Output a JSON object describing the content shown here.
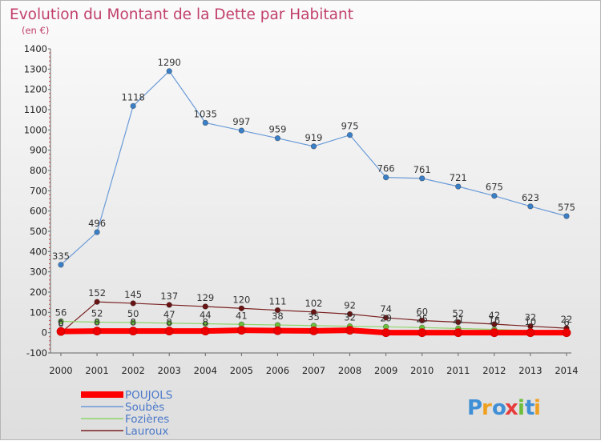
{
  "chart_data": {
    "type": "line",
    "title": "Evolution du Montant de la Dette par Habitant",
    "subtitle": "(en €)",
    "xlabel": "",
    "ylabel": "",
    "ylim": [
      -100,
      1400
    ],
    "yticks": [
      -100,
      0,
      100,
      200,
      300,
      400,
      500,
      600,
      700,
      800,
      900,
      1000,
      1100,
      1200,
      1300,
      1400
    ],
    "categories": [
      "2000",
      "2001",
      "2002",
      "2003",
      "2004",
      "2005",
      "2006",
      "2007",
      "2008",
      "2009",
      "2010",
      "2011",
      "2012",
      "2013",
      "2014"
    ],
    "grid": false,
    "legend_position": "bottom-left",
    "series": [
      {
        "name": "Soubès",
        "color": "#6a9bd8",
        "marker_color": "#3a80c8",
        "line_width": 1.2,
        "values": [
          335,
          496,
          1118,
          1290,
          1035,
          997,
          959,
          919,
          975,
          766,
          761,
          721,
          675,
          623,
          575
        ],
        "labels": [
          "335",
          "496",
          "1118",
          "1290",
          "1035",
          "997",
          "959",
          "919",
          "975",
          "766",
          "761",
          "721",
          "675",
          "623",
          "575"
        ]
      },
      {
        "name": "Lauroux",
        "color": "#7a2020",
        "marker_color": "#6a1414",
        "line_width": 1.2,
        "values": [
          0,
          152,
          145,
          137,
          129,
          120,
          111,
          102,
          92,
          74,
          60,
          52,
          42,
          32,
          22
        ],
        "labels": [
          "0",
          "152",
          "145",
          "137",
          "129",
          "120",
          "111",
          "102",
          "92",
          "74",
          "60",
          "52",
          "42",
          "32",
          "22"
        ]
      },
      {
        "name": "Fozières",
        "color": "#8ed66a",
        "marker_color": "#6bc03c",
        "line_width": 1.2,
        "values": [
          56,
          52,
          50,
          47,
          44,
          41,
          38,
          35,
          32,
          29,
          25,
          21,
          16,
          10,
          6
        ],
        "labels": [
          "56",
          "52",
          "50",
          "47",
          "44",
          "41",
          "38",
          "35",
          "32",
          "29",
          "25",
          "21",
          "16",
          "10",
          "6"
        ]
      },
      {
        "name": "POUJOLS",
        "color": "#ff0000",
        "marker_color": "#ee0000",
        "line_width": 7,
        "values": [
          6,
          8,
          8,
          8,
          8,
          12,
          10,
          9,
          12,
          0,
          0,
          0,
          0,
          0,
          0
        ],
        "labels": [
          "6",
          "8",
          "8",
          "8",
          "8",
          "",
          "",
          "",
          "",
          "",
          "",
          "",
          "",
          "",
          ""
        ]
      }
    ],
    "legend": [
      {
        "name": "POUJOLS",
        "color": "#ff0000",
        "thick": true
      },
      {
        "name": "Soubès",
        "color": "#6a9bd8",
        "thick": false
      },
      {
        "name": "Fozières",
        "color": "#8ed66a",
        "thick": false
      },
      {
        "name": "Lauroux",
        "color": "#7a2020",
        "thick": false
      }
    ]
  },
  "logo": {
    "letters": [
      {
        "ch": "P",
        "color": "#3f8fd6"
      },
      {
        "ch": "r",
        "color": "#f0a020"
      },
      {
        "ch": "o",
        "color": "#3f8fd6"
      },
      {
        "ch": "x",
        "color": "#e83c3c"
      },
      {
        "ch": "i",
        "color": "#6cbe3a"
      },
      {
        "ch": "t",
        "color": "#3f8fd6"
      },
      {
        "ch": "i",
        "color": "#f0a020"
      }
    ]
  }
}
